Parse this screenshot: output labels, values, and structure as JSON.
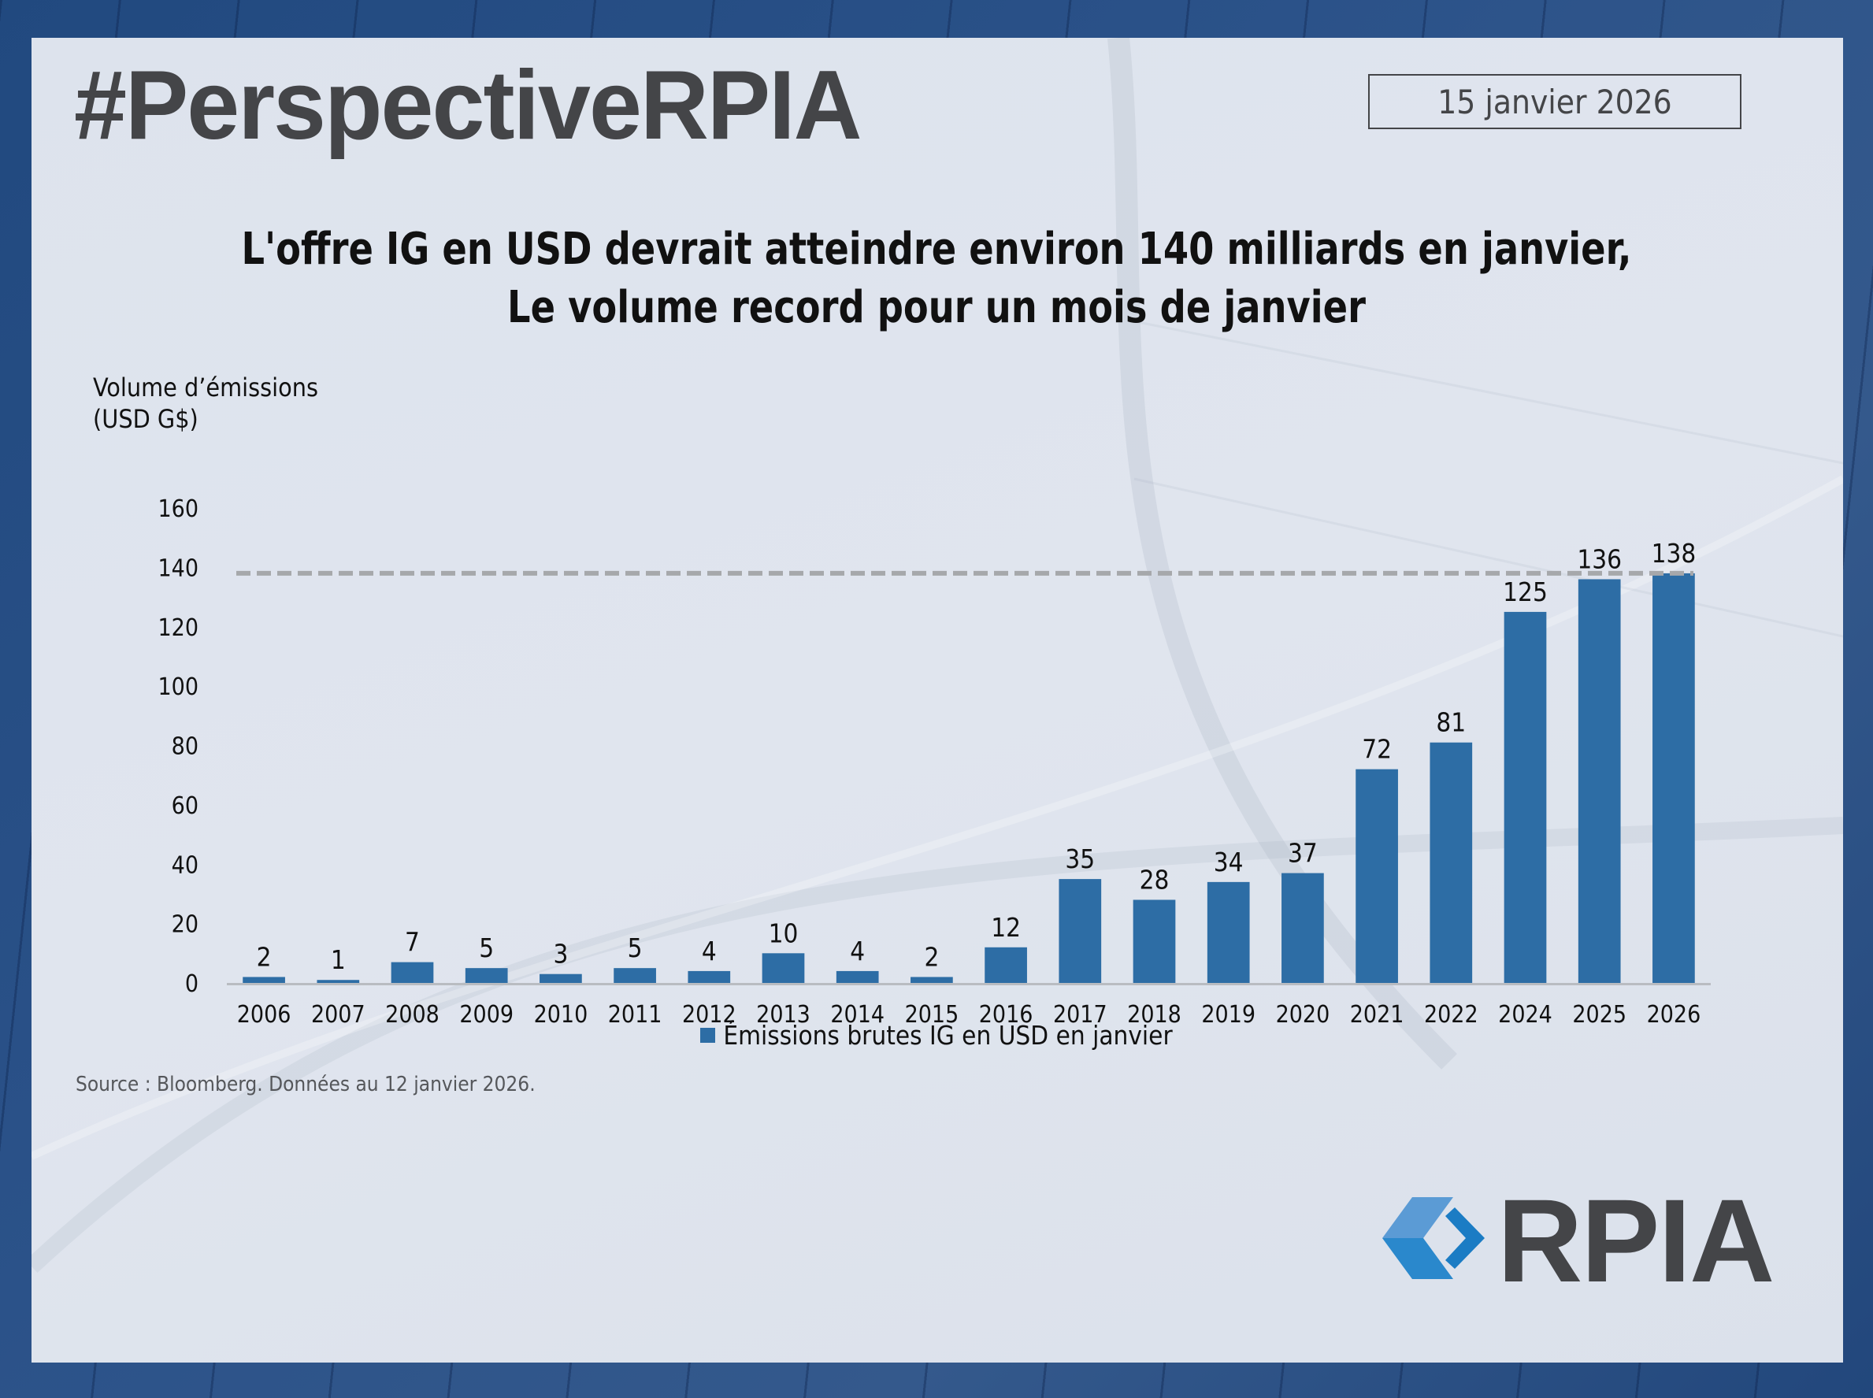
{
  "header": {
    "hashtag": "#PerspectiveRPIA",
    "date": "15 janvier 2026"
  },
  "headline": {
    "line1": "L'offre IG en USD devrait atteindre environ 140 milliards en janvier,",
    "line2": "Le volume record pour un mois de janvier"
  },
  "footer": {
    "source": "Source : Bloomberg. Données au 12 janvier 2026.",
    "logo_text": "RPIA"
  },
  "colors": {
    "bar": "#2d6da5",
    "reference_line": "#a6a8ab",
    "text": "#111111",
    "brand_dark": "#444548",
    "brand_blue_light": "#5b9bd5",
    "brand_blue": "#1b7cc4"
  },
  "chart_data": {
    "type": "bar",
    "title": "L'offre IG en USD devrait atteindre environ 140 milliards en janvier, Le volume record pour un mois de janvier",
    "ylabel": "Volume d’émissions (USD G$)",
    "ylabel_lines": [
      "Volume d’émissions",
      "(USD G$)"
    ],
    "xlabel": "",
    "ylim": [
      0,
      160
    ],
    "yticks": [
      0,
      20,
      40,
      60,
      80,
      100,
      120,
      140,
      160
    ],
    "grid": false,
    "legend": "bottom-center",
    "categories": [
      "2006",
      "2007",
      "2008",
      "2009",
      "2010",
      "2011",
      "2012",
      "2013",
      "2014",
      "2015",
      "2016",
      "2017",
      "2018",
      "2019",
      "2020",
      "2021",
      "2022",
      "2024",
      "2025",
      "2026"
    ],
    "series": [
      {
        "name": "Émissions brutes IG en USD en janvier",
        "values": [
          2,
          1,
          7,
          5,
          3,
          5,
          4,
          10,
          4,
          2,
          12,
          35,
          28,
          34,
          37,
          72,
          81,
          125,
          136,
          138
        ]
      }
    ],
    "data_labels": [
      "2",
      "1",
      "7",
      "5",
      "3",
      "5",
      "4",
      "10",
      "4",
      "2",
      "12",
      "35",
      "28",
      "34",
      "37",
      "72",
      "81",
      "125",
      "136",
      "138"
    ],
    "reference_line": {
      "style": "dashed",
      "value": 138
    }
  }
}
